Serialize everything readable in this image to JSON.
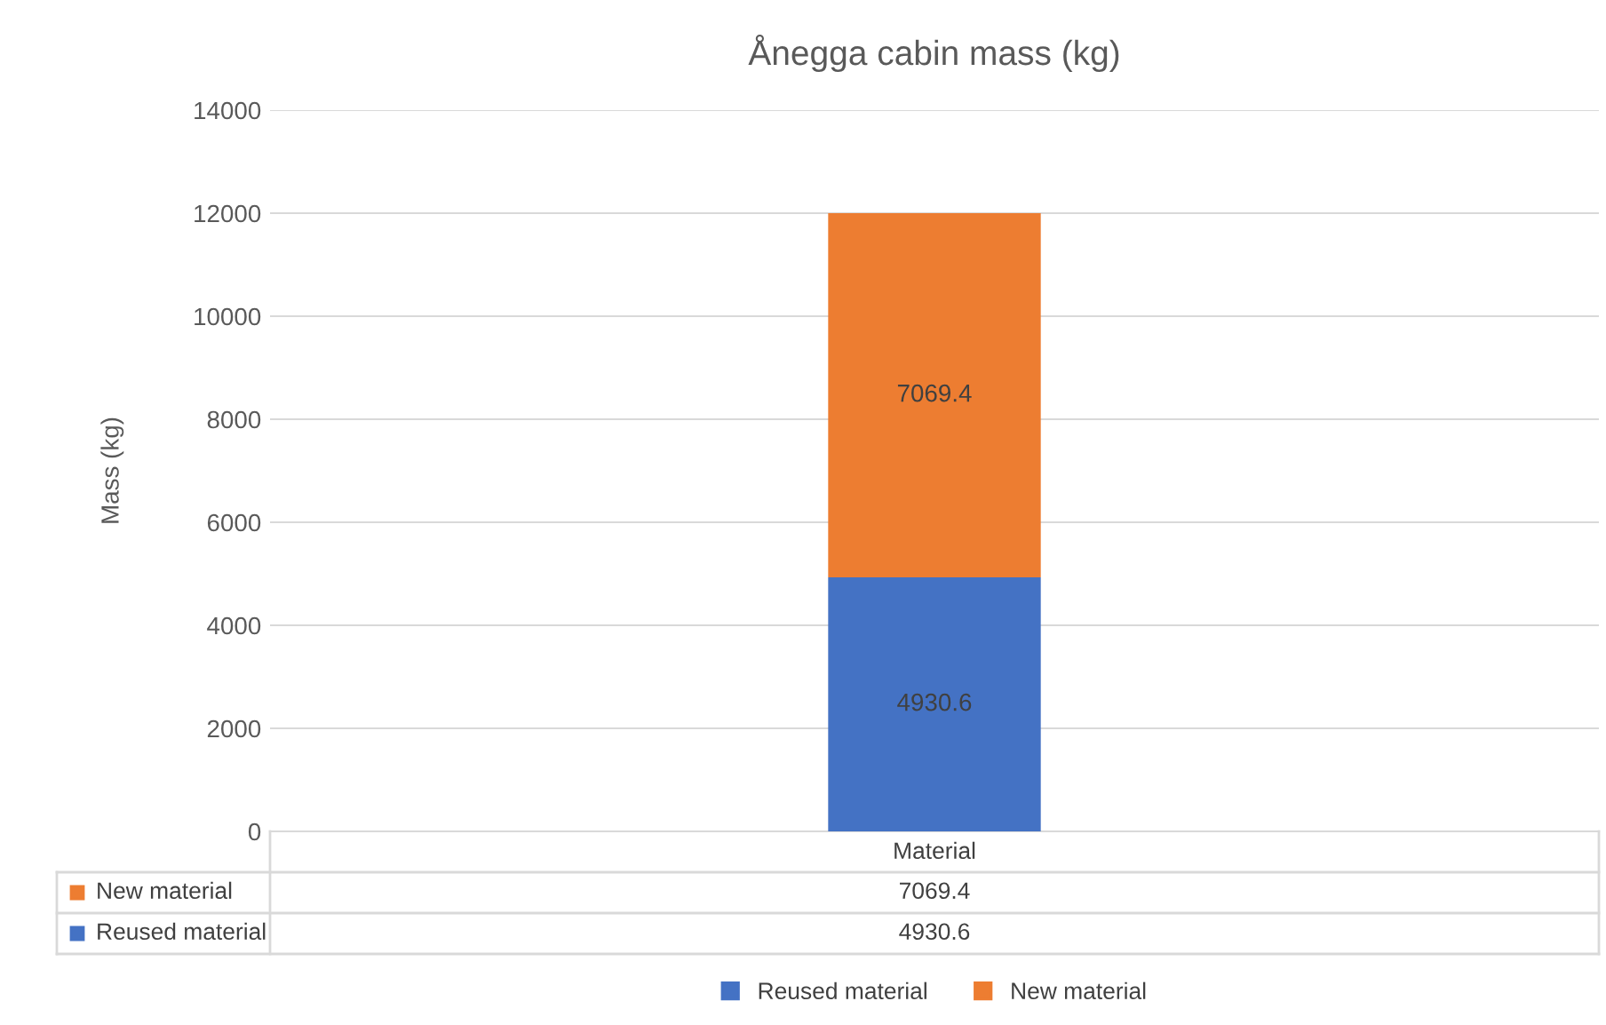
{
  "chart_data": {
    "type": "bar",
    "title": "Ånegga cabin mass (kg)",
    "ylabel": "Mass (kg)",
    "categories": [
      "Material"
    ],
    "stacked": true,
    "series": [
      {
        "name": "Reused material",
        "color": "#4472c4",
        "values": [
          4930.6
        ]
      },
      {
        "name": "New material",
        "color": "#ed7d31",
        "values": [
          7069.4
        ]
      }
    ],
    "ylim": [
      0,
      14000
    ],
    "yticks": [
      0,
      2000,
      4000,
      6000,
      8000,
      10000,
      12000,
      14000
    ],
    "grid": "y",
    "legend": "bottom",
    "data_labels": true,
    "annotations": [
      "7069.4",
      "4930.6"
    ]
  }
}
